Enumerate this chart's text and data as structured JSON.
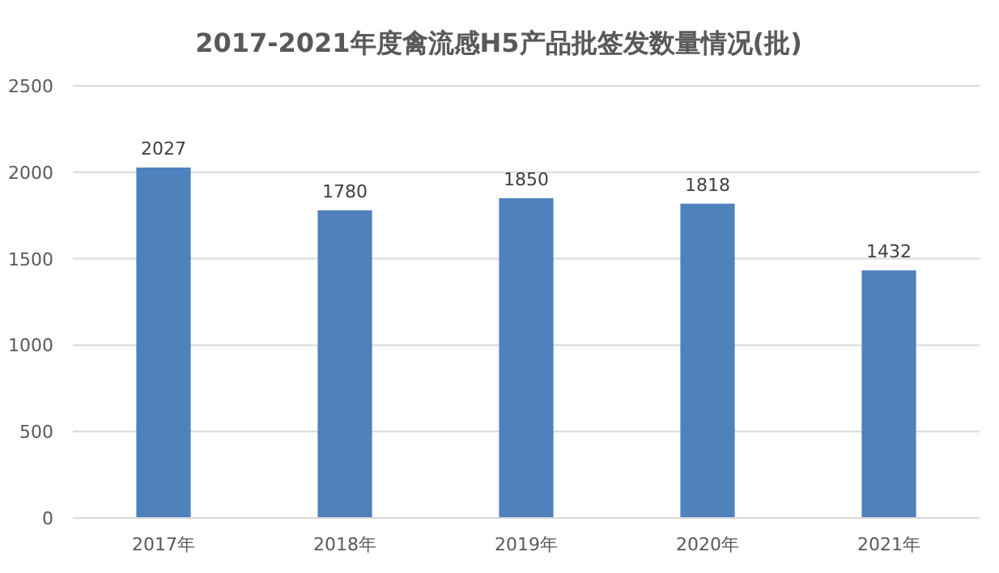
{
  "chart_data": {
    "type": "bar",
    "title": "2017-2021年度禽流感H5产品批签发数量情况(批)",
    "categories": [
      "2017年",
      "2018年",
      "2019年",
      "2020年",
      "2021年"
    ],
    "values": [
      2027,
      1780,
      1850,
      1818,
      1432
    ],
    "color": "#4f81bd",
    "ylim": [
      0,
      2500
    ],
    "yticks": [
      0,
      500,
      1000,
      1500,
      2000,
      2500
    ],
    "grid": "y",
    "data_labels": true
  }
}
